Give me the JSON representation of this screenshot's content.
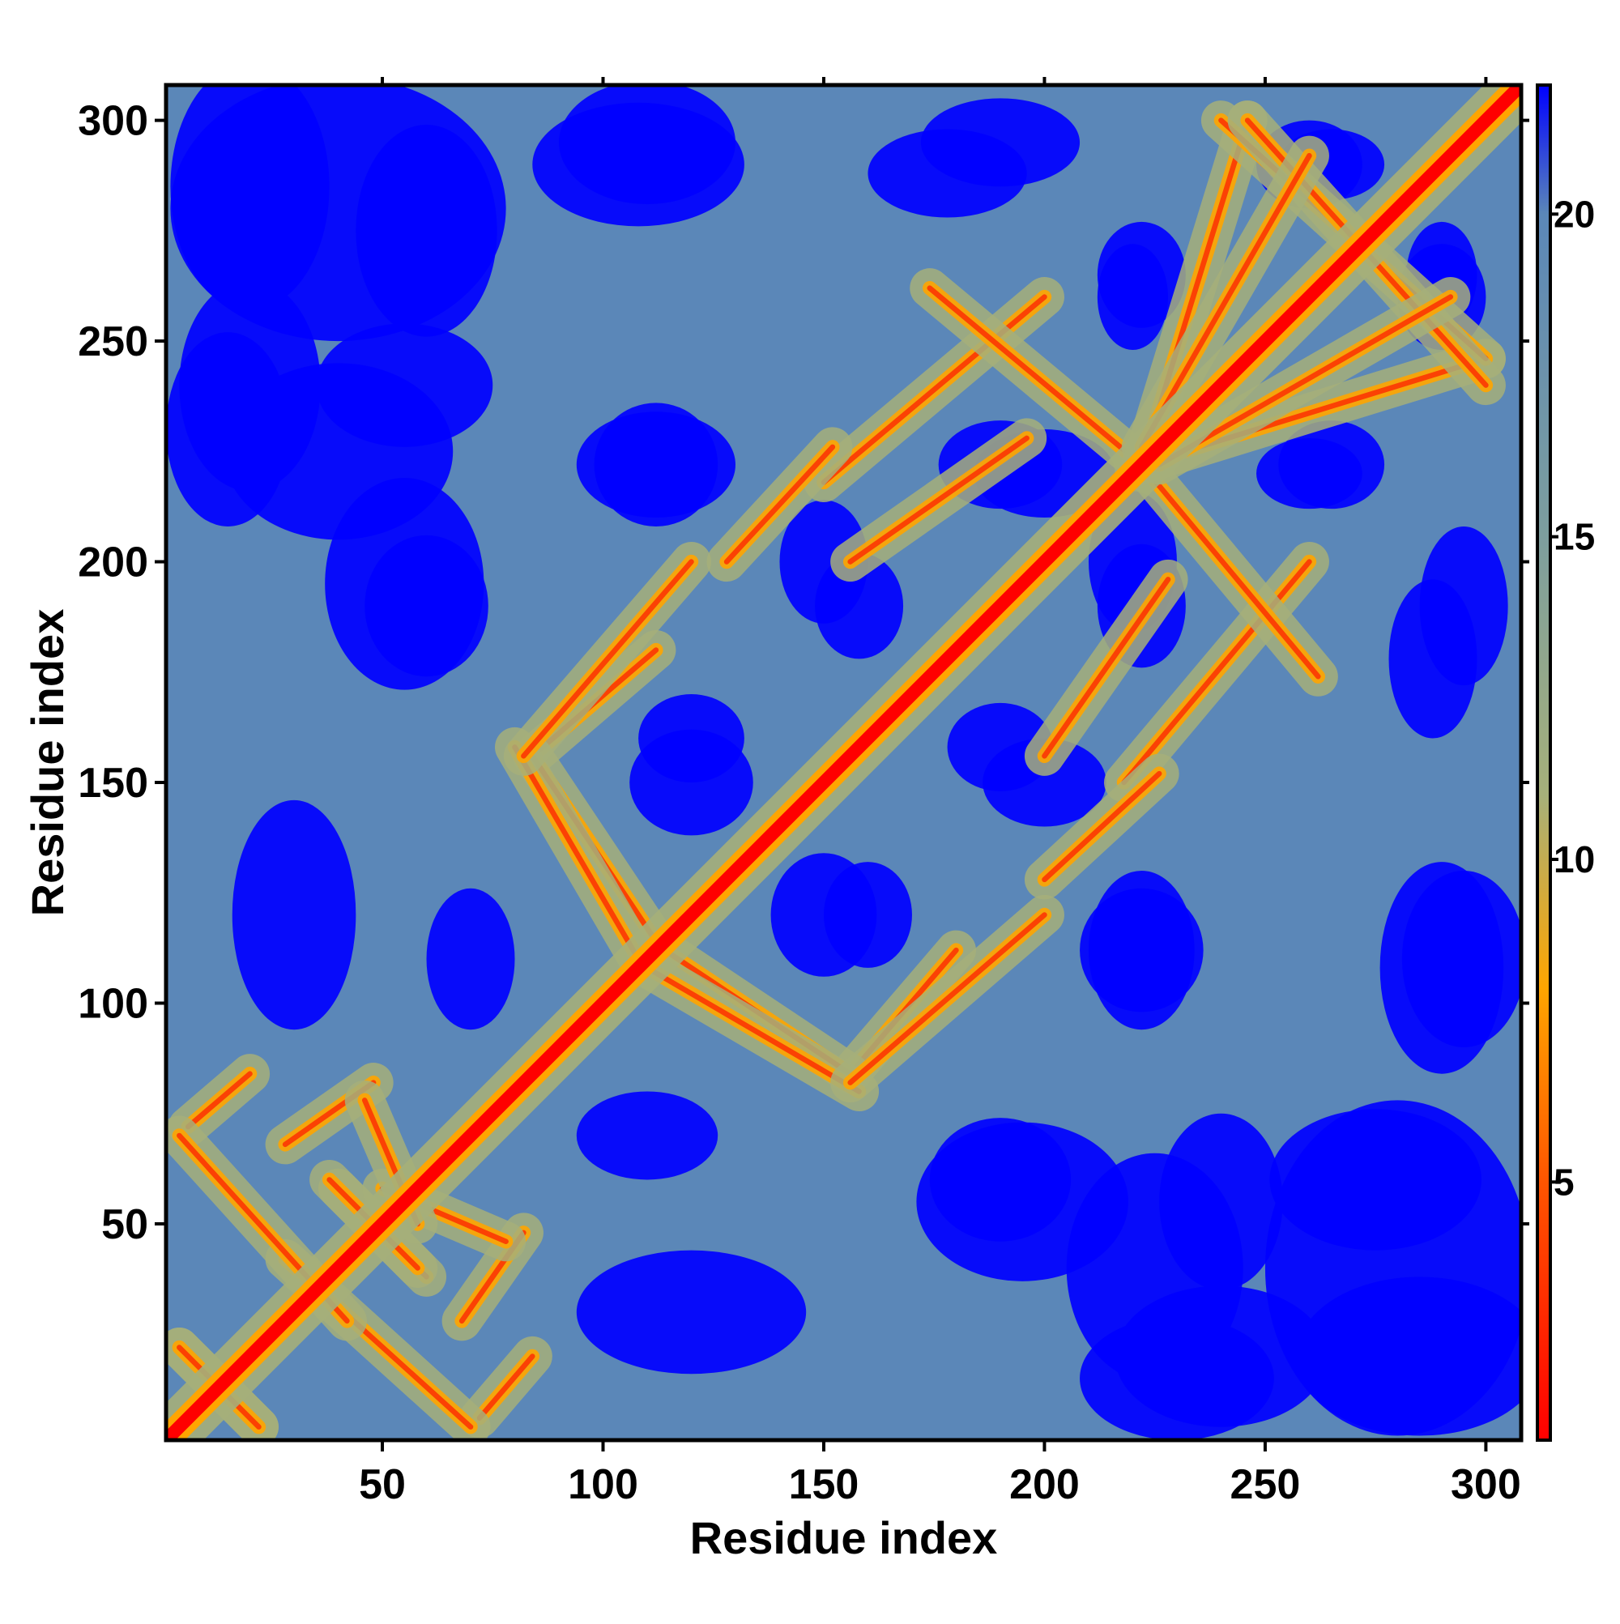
{
  "chart_data": {
    "type": "heatmap",
    "title": "",
    "xlabel": "Residue index",
    "ylabel": "Residue index",
    "n_residues": 308,
    "xlim": [
      1,
      308
    ],
    "ylim": [
      1,
      308
    ],
    "x_ticks": [
      50,
      100,
      150,
      200,
      250,
      300
    ],
    "y_ticks": [
      50,
      100,
      150,
      200,
      250,
      300
    ],
    "x_tick_labels": [
      "50",
      "100",
      "150",
      "200",
      "250",
      "300"
    ],
    "y_tick_labels": [
      "50",
      "100",
      "150",
      "200",
      "250",
      "300"
    ],
    "colorbar": {
      "range": [
        1,
        22
      ],
      "ticks": [
        5,
        10,
        15,
        20
      ],
      "tick_labels": [
        "5",
        "10",
        "15",
        "20"
      ],
      "stops": [
        {
          "value": 1,
          "color": "#ff0000"
        },
        {
          "value": 5,
          "color": "#ff5500"
        },
        {
          "value": 8,
          "color": "#ffa500"
        },
        {
          "value": 11,
          "color": "#a6b07a"
        },
        {
          "value": 15,
          "color": "#7d9e9e"
        },
        {
          "value": 20,
          "color": "#5b87b8"
        },
        {
          "value": 22,
          "color": "#0000ff"
        }
      ]
    },
    "colors": {
      "background": "#5b87b8",
      "far": "#0000ff",
      "contact": "#ff0000",
      "near": "#ffa500",
      "mid": "#a6b07a"
    },
    "diagonal": {
      "value": 1
    },
    "contact_bands": [
      {
        "from": [
          4,
          22
        ],
        "to": [
          22,
          4
        ]
      },
      {
        "from": [
          6,
          72
        ],
        "to": [
          20,
          84
        ]
      },
      {
        "from": [
          28,
          68
        ],
        "to": [
          48,
          82
        ]
      },
      {
        "from": [
          40,
          58
        ],
        "to": [
          60,
          38
        ]
      },
      {
        "from": [
          50,
          58
        ],
        "to": [
          78,
          46
        ]
      },
      {
        "from": [
          28,
          42
        ],
        "to": [
          70,
          4
        ]
      },
      {
        "from": [
          84,
          156
        ],
        "to": [
          112,
          180
        ]
      },
      {
        "from": [
          84,
          156
        ],
        "to": [
          112,
          114
        ]
      },
      {
        "from": [
          110,
          108
        ],
        "to": [
          158,
          80
        ]
      },
      {
        "from": [
          156,
          82
        ],
        "to": [
          200,
          120
        ]
      },
      {
        "from": [
          150,
          218
        ],
        "to": [
          200,
          260
        ]
      },
      {
        "from": [
          156,
          200
        ],
        "to": [
          196,
          228
        ]
      },
      {
        "from": [
          200,
          128
        ],
        "to": [
          226,
          152
        ]
      },
      {
        "from": [
          222,
          222
        ],
        "to": [
          262,
          174
        ]
      },
      {
        "from": [
          222,
          222
        ],
        "to": [
          246,
          300
        ]
      },
      {
        "from": [
          240,
          300
        ],
        "to": [
          300,
          246
        ]
      },
      {
        "from": [
          226,
          222
        ],
        "to": [
          292,
          260
        ]
      }
    ],
    "far_clusters": [
      {
        "x": 40,
        "y": 280,
        "rx": 38,
        "ry": 30
      },
      {
        "x": 15,
        "y": 230,
        "rx": 14,
        "ry": 22
      },
      {
        "x": 55,
        "y": 240,
        "rx": 20,
        "ry": 14
      },
      {
        "x": 60,
        "y": 190,
        "rx": 14,
        "ry": 16
      },
      {
        "x": 108,
        "y": 290,
        "rx": 24,
        "ry": 14
      },
      {
        "x": 112,
        "y": 222,
        "rx": 18,
        "ry": 12
      },
      {
        "x": 120,
        "y": 160,
        "rx": 12,
        "ry": 10
      },
      {
        "x": 178,
        "y": 288,
        "rx": 18,
        "ry": 10
      },
      {
        "x": 190,
        "y": 222,
        "rx": 14,
        "ry": 10
      },
      {
        "x": 150,
        "y": 200,
        "rx": 10,
        "ry": 14
      },
      {
        "x": 190,
        "y": 158,
        "rx": 12,
        "ry": 10
      },
      {
        "x": 220,
        "y": 260,
        "rx": 8,
        "ry": 12
      },
      {
        "x": 220,
        "y": 200,
        "rx": 10,
        "ry": 16
      },
      {
        "x": 265,
        "y": 290,
        "rx": 12,
        "ry": 8
      },
      {
        "x": 265,
        "y": 222,
        "rx": 12,
        "ry": 10
      },
      {
        "x": 290,
        "y": 260,
        "rx": 10,
        "ry": 12
      },
      {
        "x": 295,
        "y": 190,
        "rx": 10,
        "ry": 18
      },
      {
        "x": 150,
        "y": 120,
        "rx": 12,
        "ry": 14
      },
      {
        "x": 222,
        "y": 112,
        "rx": 14,
        "ry": 14
      },
      {
        "x": 295,
        "y": 110,
        "rx": 14,
        "ry": 20
      },
      {
        "x": 195,
        "y": 55,
        "rx": 24,
        "ry": 18
      },
      {
        "x": 225,
        "y": 40,
        "rx": 20,
        "ry": 26
      },
      {
        "x": 275,
        "y": 60,
        "rx": 24,
        "ry": 16
      },
      {
        "x": 285,
        "y": 20,
        "rx": 28,
        "ry": 18
      },
      {
        "x": 120,
        "y": 30,
        "rx": 26,
        "ry": 14
      },
      {
        "x": 240,
        "y": 20,
        "rx": 24,
        "ry": 16
      },
      {
        "x": 110,
        "y": 70,
        "rx": 16,
        "ry": 10
      }
    ]
  }
}
